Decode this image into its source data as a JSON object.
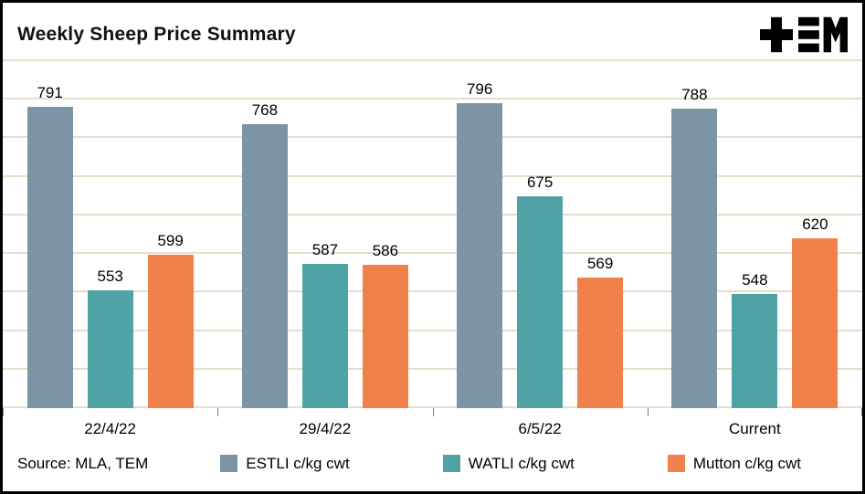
{
  "header": {
    "title": "Weekly Sheep Price Summary",
    "logo_icon": "tem-logo"
  },
  "footer": {
    "source": "Source: MLA, TEM"
  },
  "colors": {
    "estli": "#7C95A5",
    "watli": "#4FA3A5",
    "mutton": "#F0814B",
    "gridline": "#E4DECB",
    "tick": "#808080",
    "border": "#000000",
    "background": "#FFFFFF",
    "text": "#000000"
  },
  "chart_data": {
    "type": "bar",
    "title": "Weekly Sheep Price Summary",
    "categories": [
      "22/4/22",
      "29/4/22",
      "6/5/22",
      "Current"
    ],
    "series": [
      {
        "key": "estli",
        "name": "ESTLI c/kg cwt",
        "color": "#7C95A5",
        "values": [
          791,
          768,
          796,
          788
        ]
      },
      {
        "key": "watli",
        "name": "WATLI c/kg cwt",
        "color": "#4FA3A5",
        "values": [
          553,
          587,
          675,
          548
        ]
      },
      {
        "key": "mutton",
        "name": "Mutton c/kg cwt",
        "color": "#F0814B",
        "values": [
          599,
          586,
          569,
          620
        ]
      }
    ],
    "xlabel": "",
    "ylabel": "",
    "ylim": [
      400,
      850
    ],
    "gridline_step": 50,
    "grid": true,
    "y_axis_labels_visible": false,
    "legend_position": "bottom"
  }
}
